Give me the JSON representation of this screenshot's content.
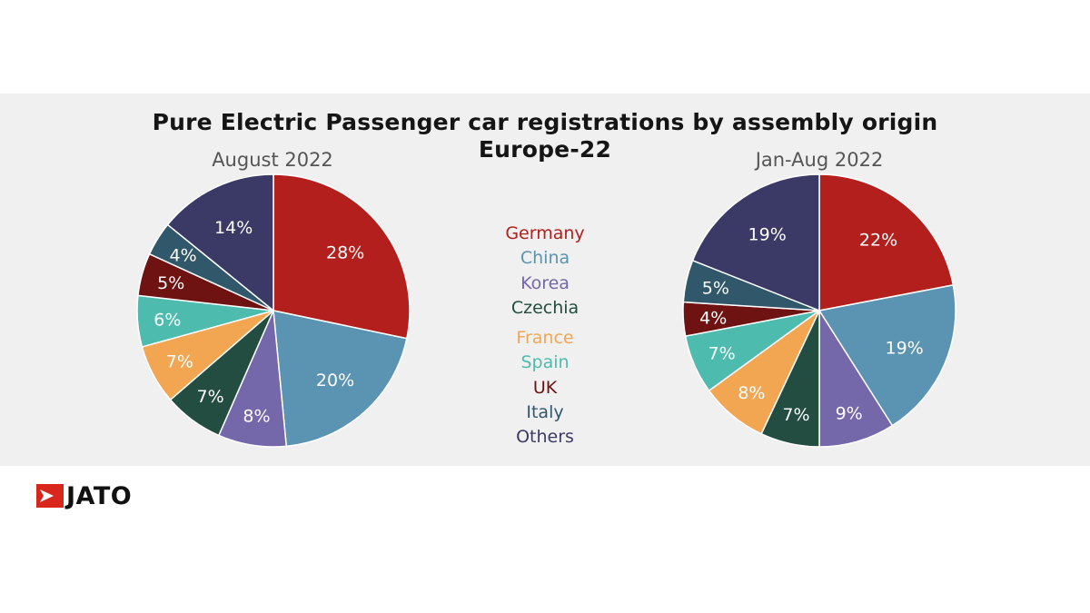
{
  "title": "Pure Electric Passenger car registrations by assembly origin",
  "subtitle": "Europe-22",
  "legend": [
    {
      "name": "Germany",
      "color": "#b21f1c"
    },
    {
      "name": "China",
      "color": "#5b93b3"
    },
    {
      "name": "Korea",
      "color": "#7467aa"
    },
    {
      "name": "Czechia",
      "color": "#234d40"
    },
    {
      "name": "France",
      "color": "#f2a651"
    },
    {
      "name": "Spain",
      "color": "#4dbcae"
    },
    {
      "name": "UK",
      "color": "#6f1212"
    },
    {
      "name": "Italy",
      "color": "#30576a"
    },
    {
      "name": "Others",
      "color": "#3b3a67"
    }
  ],
  "chart_data": [
    {
      "type": "pie",
      "title": "August 2022",
      "labels": [
        "Germany",
        "China",
        "Korea",
        "Czechia",
        "France",
        "Spain",
        "UK",
        "Italy",
        "Others"
      ],
      "values": [
        28,
        20,
        8,
        7,
        7,
        6,
        5,
        4,
        14
      ],
      "value_labels": [
        "28%",
        "20%",
        "8%",
        "7%",
        "7%",
        "6%",
        "5%",
        "4%",
        "14%"
      ]
    },
    {
      "type": "pie",
      "title": "Jan-Aug 2022",
      "labels": [
        "Germany",
        "China",
        "Korea",
        "Czechia",
        "France",
        "Spain",
        "UK",
        "Italy",
        "Others"
      ],
      "values": [
        22,
        19,
        9,
        7,
        8,
        7,
        4,
        5,
        19
      ],
      "value_labels": [
        "22%",
        "19%",
        "9%",
        "7%",
        "8%",
        "7%",
        "4%",
        "5%",
        "19%"
      ]
    }
  ],
  "logo": {
    "text": "JATO",
    "color": "#d9261c"
  }
}
